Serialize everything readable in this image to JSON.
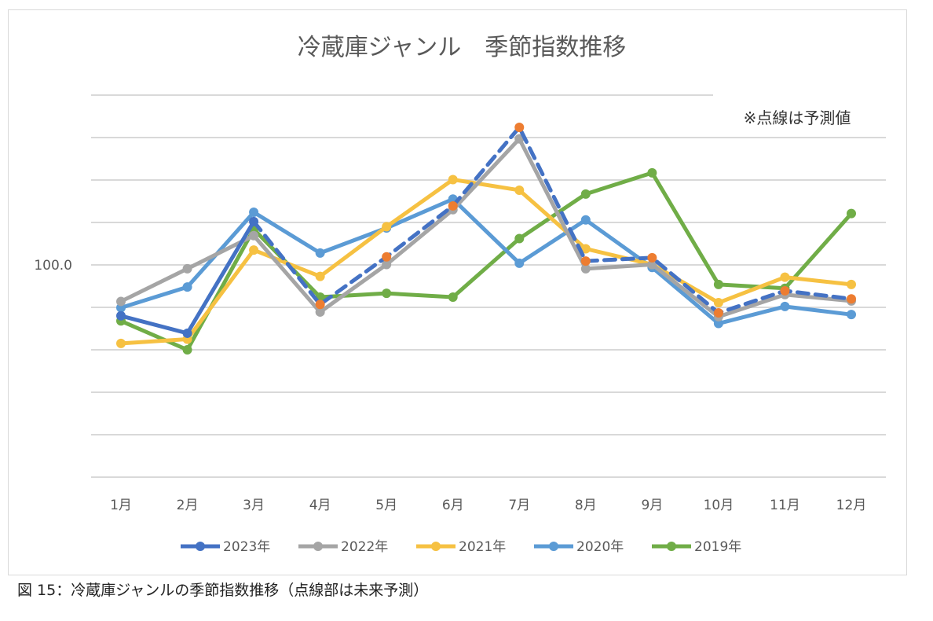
{
  "chart_data": {
    "type": "line",
    "title": "冷蔵庫ジャンル　季節指数推移",
    "annotation": "※点線は予測値",
    "categories": [
      "1月",
      "2月",
      "3月",
      "4月",
      "5月",
      "6月",
      "7月",
      "8月",
      "9月",
      "10月",
      "11月",
      "12月"
    ],
    "y_tick_labels": [
      {
        "value": 100,
        "label": "100.0"
      }
    ],
    "ylim": [
      50,
      140
    ],
    "grid_step": 10,
    "grid": true,
    "legend": "bottom",
    "series": [
      {
        "name": "2019年",
        "color": "#70ad47",
        "values": [
          86.8,
          80.0,
          108.4,
          92.4,
          93.3,
          92.4,
          106.2,
          116.7,
          121.7,
          95.4,
          94.5,
          112.1
        ]
      },
      {
        "name": "2020年",
        "color": "#5b9bd5",
        "values": [
          89.9,
          94.8,
          112.4,
          102.8,
          108.7,
          115.5,
          100.4,
          110.6,
          99.4,
          86.2,
          90.2,
          88.3
        ]
      },
      {
        "name": "2021年",
        "color": "#f6c142",
        "values": [
          81.5,
          82.5,
          103.5,
          97.3,
          109.0,
          120.1,
          117.6,
          103.8,
          100.1,
          91.1,
          97.1,
          95.4
        ]
      },
      {
        "name": "2022年",
        "color": "#a5a5a5",
        "values": [
          91.4,
          99.1,
          106.9,
          88.9,
          100.1,
          113.0,
          129.7,
          99.1,
          100.1,
          87.8,
          93.0,
          91.5
        ]
      },
      {
        "name": "2023年",
        "color": "#4472c4",
        "values": [
          88.0,
          83.9,
          110.2,
          null,
          null,
          null,
          null,
          null,
          null,
          null,
          null,
          null
        ],
        "forecast": [
          null,
          null,
          110.2,
          90.7,
          101.9,
          113.9,
          132.4,
          100.9,
          101.7,
          88.7,
          93.9,
          92.0
        ],
        "forecast_marker_color": "#ed7d31"
      }
    ],
    "legend_order": [
      "2023年",
      "2022年",
      "2021年",
      "2020年",
      "2019年"
    ]
  },
  "caption": "図 15：冷蔵庫ジャンルの季節指数推移（点線部は未来予測）"
}
